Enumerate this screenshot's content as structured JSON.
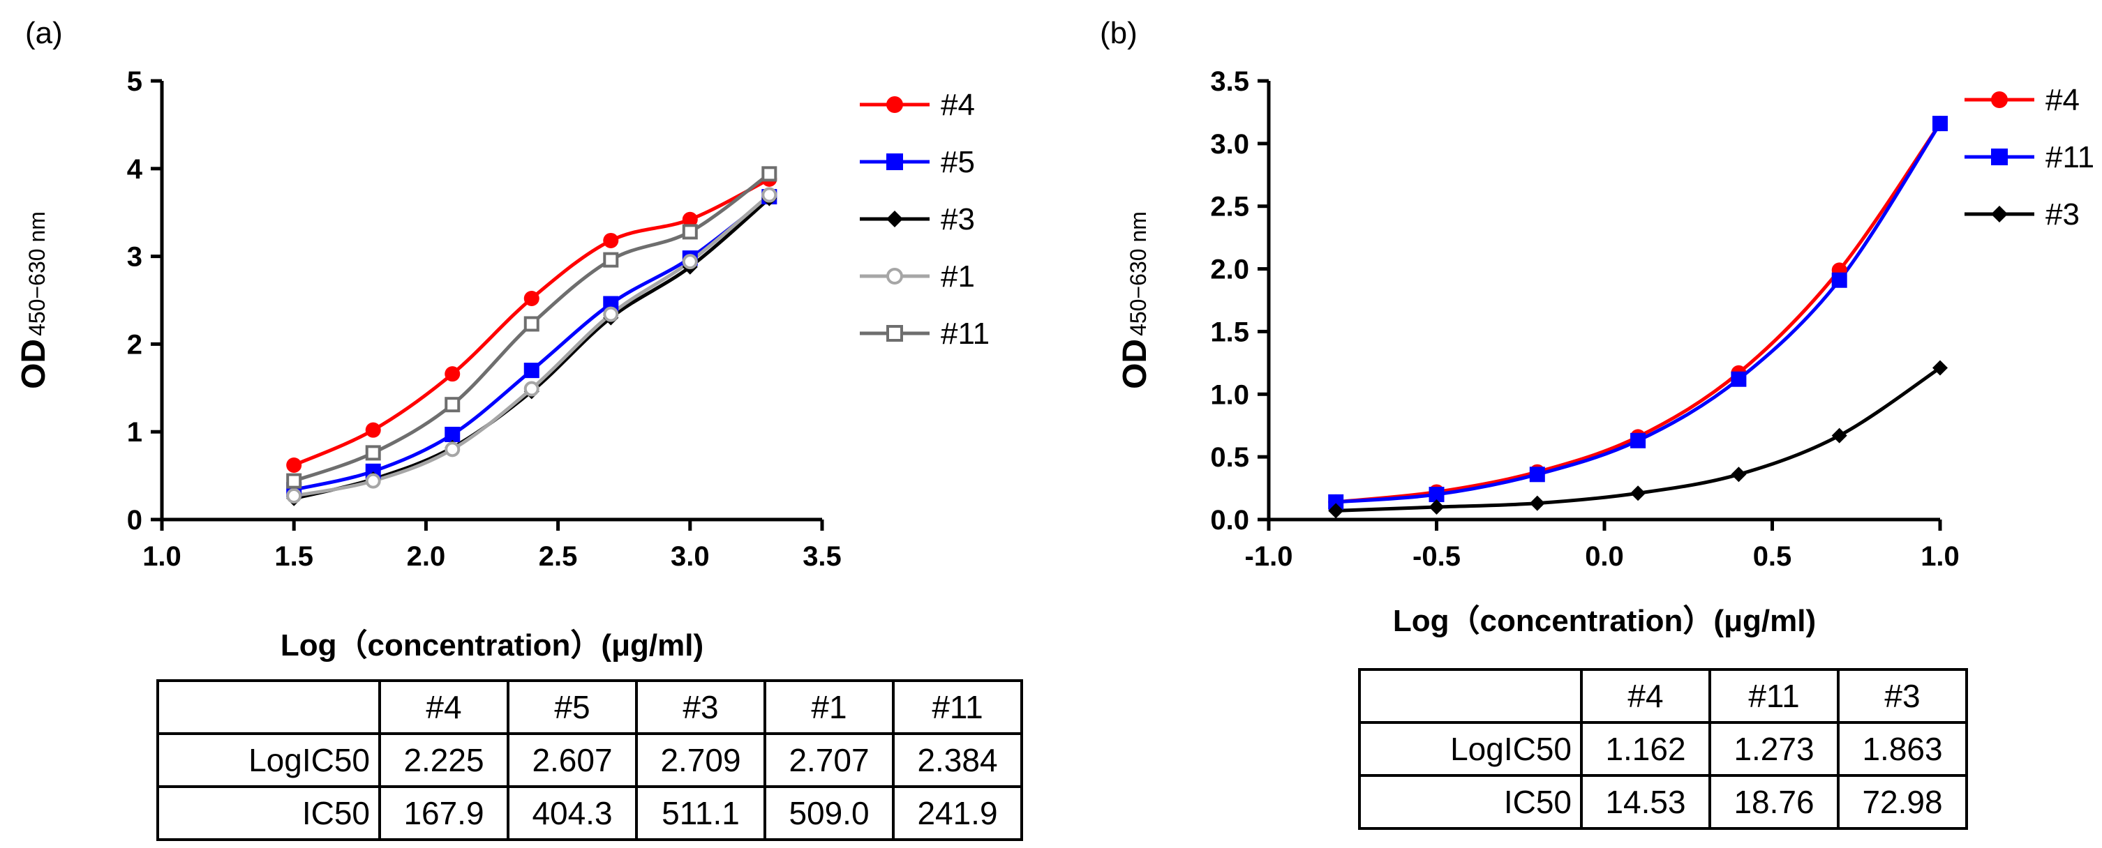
{
  "panels": {
    "a": {
      "label": "(a)",
      "table": {
        "columns": [
          "",
          "#4",
          "#5",
          "#3",
          "#1",
          "#11"
        ],
        "rows": [
          {
            "label": "LogIC50",
            "values": [
              "2.225",
              "2.607",
              "2.709",
              "2.707",
              "2.384"
            ]
          },
          {
            "label": "IC50",
            "values": [
              "167.9",
              "404.3",
              "511.1",
              "509.0",
              "241.9"
            ]
          }
        ]
      }
    },
    "b": {
      "label": "(b)",
      "table": {
        "columns": [
          "",
          "#4",
          "#11",
          "#3"
        ],
        "rows": [
          {
            "label": "LogIC50",
            "values": [
              "1.162",
              "1.273",
              "1.863"
            ]
          },
          {
            "label": "IC50",
            "values": [
              "14.53",
              "18.76",
              "72.98"
            ]
          }
        ]
      }
    }
  },
  "chart_data": [
    {
      "type": "line",
      "panel": "a",
      "xlabel": "Log（concentration）(μg/ml)",
      "ylabel_main": "OD",
      "ylabel_sub": "450−630 nm",
      "xlim": [
        1.0,
        3.5
      ],
      "ylim": [
        0,
        5
      ],
      "xticks": [
        1.0,
        1.5,
        2.0,
        2.5,
        3.0,
        3.5
      ],
      "xtick_labels": [
        "1.0",
        "1.5",
        "2.0",
        "2.5",
        "3.0",
        "3.5"
      ],
      "yticks": [
        0,
        1,
        2,
        3,
        4,
        5
      ],
      "ytick_labels": [
        "0",
        "1",
        "2",
        "3",
        "4",
        "5"
      ],
      "legend_position": "right",
      "x": [
        1.5,
        1.8,
        2.1,
        2.4,
        2.7,
        3.0,
        3.3
      ],
      "series": [
        {
          "name": "#4",
          "color": "#ff0000",
          "marker": "circle-filled",
          "values": [
            0.62,
            1.02,
            1.66,
            2.52,
            3.18,
            3.42,
            3.88
          ]
        },
        {
          "name": "#5",
          "color": "#0000ff",
          "marker": "square-filled",
          "values": [
            0.34,
            0.55,
            0.97,
            1.7,
            2.46,
            2.98,
            3.68
          ]
        },
        {
          "name": "#3",
          "color": "#000000",
          "marker": "diamond-filled",
          "values": [
            0.24,
            0.46,
            0.82,
            1.46,
            2.3,
            2.88,
            3.66
          ]
        },
        {
          "name": "#1",
          "color": "#a6a6a6",
          "marker": "circle-open",
          "values": [
            0.27,
            0.44,
            0.8,
            1.49,
            2.34,
            2.94,
            3.7
          ]
        },
        {
          "name": "#11",
          "color": "#6e6e6e",
          "marker": "square-open",
          "values": [
            0.44,
            0.76,
            1.31,
            2.23,
            2.96,
            3.28,
            3.94
          ]
        }
      ]
    },
    {
      "type": "line",
      "panel": "b",
      "xlabel": "Log（concentration）(μg/ml)",
      "ylabel_main": "OD",
      "ylabel_sub": "450−630 nm",
      "xlim": [
        -1.0,
        1.0
      ],
      "ylim": [
        0,
        3.5
      ],
      "xticks": [
        -1.0,
        -0.5,
        0.0,
        0.5,
        1.0
      ],
      "xtick_labels": [
        "-1.0",
        "-0.5",
        "0.0",
        "0.5",
        "1.0"
      ],
      "yticks": [
        0,
        0.5,
        1.0,
        1.5,
        2.0,
        2.5,
        3.0,
        3.5
      ],
      "ytick_labels": [
        "0.0",
        "0.5",
        "1.0",
        "1.5",
        "2.0",
        "2.5",
        "3.0",
        "3.5"
      ],
      "legend_position": "top-right",
      "x": [
        -0.8,
        -0.5,
        -0.2,
        0.1,
        0.4,
        0.7,
        1.0
      ],
      "series": [
        {
          "name": "#4",
          "color": "#ff0000",
          "marker": "circle-filled",
          "values": [
            0.14,
            0.22,
            0.38,
            0.66,
            1.17,
            1.99,
            3.16
          ]
        },
        {
          "name": "#11",
          "color": "#0000ff",
          "marker": "square-filled",
          "values": [
            0.14,
            0.2,
            0.36,
            0.63,
            1.12,
            1.91,
            3.16
          ]
        },
        {
          "name": "#3",
          "color": "#000000",
          "marker": "diamond-filled",
          "values": [
            0.07,
            0.1,
            0.13,
            0.21,
            0.36,
            0.67,
            1.21
          ]
        }
      ]
    }
  ]
}
